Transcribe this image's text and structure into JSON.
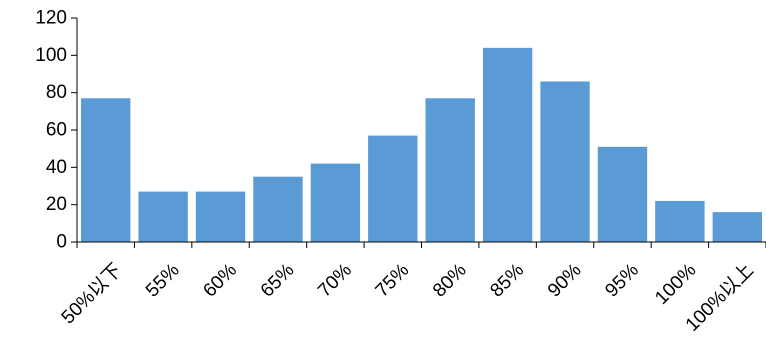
{
  "chart_data": {
    "type": "bar",
    "categories": [
      "50%以下",
      "55%",
      "60%",
      "65%",
      "70%",
      "75%",
      "80%",
      "85%",
      "90%",
      "95%",
      "100%",
      "100%以上"
    ],
    "values": [
      77,
      27,
      27,
      35,
      42,
      57,
      77,
      104,
      86,
      51,
      22,
      16
    ],
    "yticks": [
      "0",
      "20",
      "40",
      "60",
      "80",
      "100",
      "120"
    ],
    "ylim": [
      0,
      120
    ],
    "grid": false,
    "legend": "none",
    "colors": {
      "bar": "#5b9bd5",
      "axis": "#000000",
      "text": "#000000"
    }
  }
}
